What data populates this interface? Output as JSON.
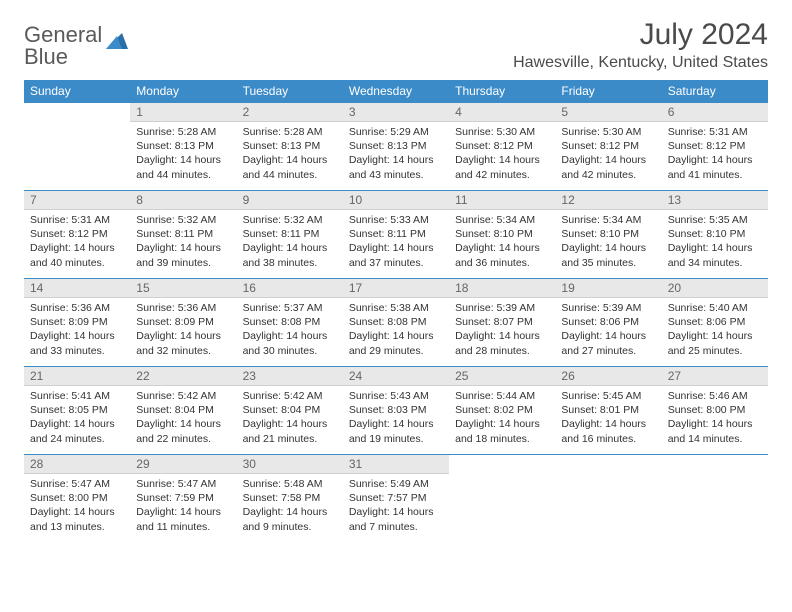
{
  "logo": {
    "line1": "General",
    "line2": "Blue"
  },
  "title": "July 2024",
  "location": "Hawesville, Kentucky, United States",
  "header_color": "#3b8bc9",
  "daynum_bg": "#e8e8e8",
  "border_color": "#3b8bc9",
  "weekdays": [
    "Sunday",
    "Monday",
    "Tuesday",
    "Wednesday",
    "Thursday",
    "Friday",
    "Saturday"
  ],
  "weeks": [
    [
      null,
      {
        "n": "1",
        "sr": "5:28 AM",
        "ss": "8:13 PM",
        "dl": "14 hours and 44 minutes."
      },
      {
        "n": "2",
        "sr": "5:28 AM",
        "ss": "8:13 PM",
        "dl": "14 hours and 44 minutes."
      },
      {
        "n": "3",
        "sr": "5:29 AM",
        "ss": "8:13 PM",
        "dl": "14 hours and 43 minutes."
      },
      {
        "n": "4",
        "sr": "5:30 AM",
        "ss": "8:12 PM",
        "dl": "14 hours and 42 minutes."
      },
      {
        "n": "5",
        "sr": "5:30 AM",
        "ss": "8:12 PM",
        "dl": "14 hours and 42 minutes."
      },
      {
        "n": "6",
        "sr": "5:31 AM",
        "ss": "8:12 PM",
        "dl": "14 hours and 41 minutes."
      }
    ],
    [
      {
        "n": "7",
        "sr": "5:31 AM",
        "ss": "8:12 PM",
        "dl": "14 hours and 40 minutes."
      },
      {
        "n": "8",
        "sr": "5:32 AM",
        "ss": "8:11 PM",
        "dl": "14 hours and 39 minutes."
      },
      {
        "n": "9",
        "sr": "5:32 AM",
        "ss": "8:11 PM",
        "dl": "14 hours and 38 minutes."
      },
      {
        "n": "10",
        "sr": "5:33 AM",
        "ss": "8:11 PM",
        "dl": "14 hours and 37 minutes."
      },
      {
        "n": "11",
        "sr": "5:34 AM",
        "ss": "8:10 PM",
        "dl": "14 hours and 36 minutes."
      },
      {
        "n": "12",
        "sr": "5:34 AM",
        "ss": "8:10 PM",
        "dl": "14 hours and 35 minutes."
      },
      {
        "n": "13",
        "sr": "5:35 AM",
        "ss": "8:10 PM",
        "dl": "14 hours and 34 minutes."
      }
    ],
    [
      {
        "n": "14",
        "sr": "5:36 AM",
        "ss": "8:09 PM",
        "dl": "14 hours and 33 minutes."
      },
      {
        "n": "15",
        "sr": "5:36 AM",
        "ss": "8:09 PM",
        "dl": "14 hours and 32 minutes."
      },
      {
        "n": "16",
        "sr": "5:37 AM",
        "ss": "8:08 PM",
        "dl": "14 hours and 30 minutes."
      },
      {
        "n": "17",
        "sr": "5:38 AM",
        "ss": "8:08 PM",
        "dl": "14 hours and 29 minutes."
      },
      {
        "n": "18",
        "sr": "5:39 AM",
        "ss": "8:07 PM",
        "dl": "14 hours and 28 minutes."
      },
      {
        "n": "19",
        "sr": "5:39 AM",
        "ss": "8:06 PM",
        "dl": "14 hours and 27 minutes."
      },
      {
        "n": "20",
        "sr": "5:40 AM",
        "ss": "8:06 PM",
        "dl": "14 hours and 25 minutes."
      }
    ],
    [
      {
        "n": "21",
        "sr": "5:41 AM",
        "ss": "8:05 PM",
        "dl": "14 hours and 24 minutes."
      },
      {
        "n": "22",
        "sr": "5:42 AM",
        "ss": "8:04 PM",
        "dl": "14 hours and 22 minutes."
      },
      {
        "n": "23",
        "sr": "5:42 AM",
        "ss": "8:04 PM",
        "dl": "14 hours and 21 minutes."
      },
      {
        "n": "24",
        "sr": "5:43 AM",
        "ss": "8:03 PM",
        "dl": "14 hours and 19 minutes."
      },
      {
        "n": "25",
        "sr": "5:44 AM",
        "ss": "8:02 PM",
        "dl": "14 hours and 18 minutes."
      },
      {
        "n": "26",
        "sr": "5:45 AM",
        "ss": "8:01 PM",
        "dl": "14 hours and 16 minutes."
      },
      {
        "n": "27",
        "sr": "5:46 AM",
        "ss": "8:00 PM",
        "dl": "14 hours and 14 minutes."
      }
    ],
    [
      {
        "n": "28",
        "sr": "5:47 AM",
        "ss": "8:00 PM",
        "dl": "14 hours and 13 minutes."
      },
      {
        "n": "29",
        "sr": "5:47 AM",
        "ss": "7:59 PM",
        "dl": "14 hours and 11 minutes."
      },
      {
        "n": "30",
        "sr": "5:48 AM",
        "ss": "7:58 PM",
        "dl": "14 hours and 9 minutes."
      },
      {
        "n": "31",
        "sr": "5:49 AM",
        "ss": "7:57 PM",
        "dl": "14 hours and 7 minutes."
      },
      null,
      null,
      null
    ]
  ],
  "labels": {
    "sunrise": "Sunrise:",
    "sunset": "Sunset:",
    "daylight": "Daylight:"
  }
}
